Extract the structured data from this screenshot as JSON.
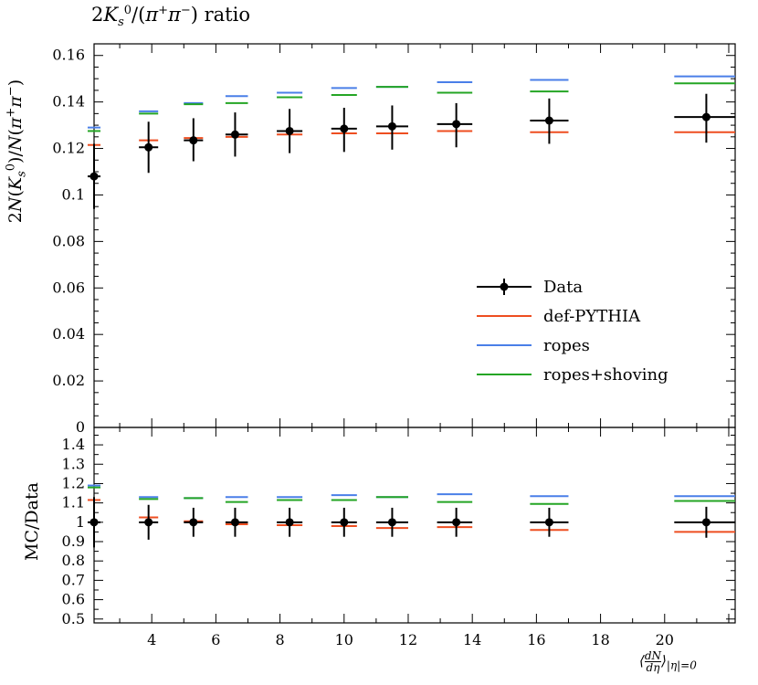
{
  "title_html": {
    "plain": "2K_s^0/(π+π−) ratio"
  },
  "chart_data": [
    {
      "type": "scatter",
      "panel": "main",
      "ylabel": "2N(K_s^0)/N(π+π−)",
      "ylim": [
        0,
        0.165
      ],
      "yticks": [
        0,
        0.02,
        0.04,
        0.06,
        0.08,
        0.1,
        0.12,
        0.14,
        0.16
      ],
      "ytick_labels": [
        "0",
        "0.02",
        "0.04",
        "0.06",
        "0.08",
        "0.1",
        "0.12",
        "0.14",
        "0.16"
      ],
      "xlim": [
        2.2,
        22.2
      ],
      "legend_position": "lower-right",
      "series": [
        {
          "name": "Data",
          "color": "#000000",
          "x": [
            2.2,
            3.9,
            5.3,
            6.6,
            8.3,
            10.0,
            11.5,
            13.5,
            16.4,
            21.3
          ],
          "xerr": [
            [
              2.0,
              2.4
            ],
            [
              3.6,
              4.2
            ],
            [
              5.0,
              5.6
            ],
            [
              6.3,
              7.0
            ],
            [
              7.9,
              8.7
            ],
            [
              9.6,
              10.4
            ],
            [
              11.0,
              12.0
            ],
            [
              12.9,
              14.0
            ],
            [
              15.8,
              17.0
            ],
            [
              20.3,
              22.2
            ]
          ],
          "y": [
            0.108,
            0.1205,
            0.1235,
            0.126,
            0.1275,
            0.1285,
            0.1295,
            0.1305,
            0.132,
            0.1335
          ],
          "yerr": [
            [
              0.094,
              0.122
            ],
            [
              0.1095,
              0.1315
            ],
            [
              0.1145,
              0.133
            ],
            [
              0.1165,
              0.1355
            ],
            [
              0.118,
              0.137
            ],
            [
              0.1185,
              0.1375
            ],
            [
              0.1195,
              0.1385
            ],
            [
              0.1205,
              0.1395
            ],
            [
              0.122,
              0.1415
            ],
            [
              0.1225,
              0.1435
            ]
          ]
        },
        {
          "name": "def-PYTHIA",
          "color": "#ee4e20",
          "x": [
            2.2,
            3.9,
            5.3,
            6.6,
            8.3,
            10.0,
            11.5,
            13.5,
            16.4,
            21.3
          ],
          "y": [
            0.1215,
            0.1235,
            0.1245,
            0.125,
            0.126,
            0.1265,
            0.1265,
            0.1275,
            0.127,
            0.127
          ]
        },
        {
          "name": "ropes",
          "color": "#4a7fe8",
          "x": [
            2.2,
            3.9,
            5.3,
            6.6,
            8.3,
            10.0,
            11.5,
            13.5,
            16.4,
            21.3
          ],
          "y": [
            0.129,
            0.136,
            0.1395,
            0.1425,
            0.144,
            0.146,
            0.1465,
            0.1485,
            0.1495,
            0.151
          ]
        },
        {
          "name": "ropes+shoving",
          "color": "#24a524",
          "x": [
            2.2,
            3.9,
            5.3,
            6.6,
            8.3,
            10.0,
            11.5,
            13.5,
            16.4,
            21.3
          ],
          "y": [
            0.1275,
            0.135,
            0.139,
            0.1395,
            0.142,
            0.143,
            0.1465,
            0.144,
            0.1445,
            0.148
          ]
        }
      ]
    },
    {
      "type": "scatter",
      "panel": "ratio",
      "ylabel": "MC/Data",
      "ylim": [
        0.48,
        1.49
      ],
      "yticks": [
        0.5,
        0.6,
        0.7,
        0.8,
        0.9,
        1.0,
        1.1,
        1.2,
        1.3,
        1.4
      ],
      "ytick_labels": [
        "0.5",
        "0.6",
        "0.7",
        "0.8",
        "0.9",
        "1",
        "1.1",
        "1.2",
        "1.3",
        "1.4"
      ],
      "xlabel": "⟨dN/dη⟩|η|=0",
      "xlim": [
        2.2,
        22.2
      ],
      "xticks": [
        4,
        6,
        8,
        10,
        12,
        14,
        16,
        18,
        20
      ],
      "xtick_labels": [
        "4",
        "6",
        "8",
        "10",
        "12",
        "14",
        "16",
        "18",
        "20"
      ],
      "series": [
        {
          "name": "Data",
          "color": "#000000",
          "x": [
            2.2,
            3.9,
            5.3,
            6.6,
            8.3,
            10.0,
            11.5,
            13.5,
            16.4,
            21.3
          ],
          "y": [
            1,
            1,
            1,
            1,
            1,
            1,
            1,
            1,
            1,
            1
          ],
          "yerr": [
            [
              0.87,
              1.13
            ],
            [
              0.91,
              1.09
            ],
            [
              0.925,
              1.075
            ],
            [
              0.925,
              1.075
            ],
            [
              0.925,
              1.075
            ],
            [
              0.925,
              1.075
            ],
            [
              0.925,
              1.075
            ],
            [
              0.925,
              1.075
            ],
            [
              0.925,
              1.075
            ],
            [
              0.92,
              1.08
            ]
          ]
        },
        {
          "name": "def-PYTHIA",
          "y": [
            1.115,
            1.025,
            1.005,
            0.99,
            0.985,
            0.98,
            0.97,
            0.975,
            0.96,
            0.95
          ]
        },
        {
          "name": "ropes",
          "y": [
            1.19,
            1.13,
            1.125,
            1.13,
            1.13,
            1.14,
            1.13,
            1.145,
            1.135,
            1.135
          ]
        },
        {
          "name": "ropes+shoving",
          "y": [
            1.18,
            1.12,
            1.125,
            1.105,
            1.115,
            1.115,
            1.13,
            1.105,
            1.095,
            1.11
          ]
        }
      ]
    }
  ]
}
